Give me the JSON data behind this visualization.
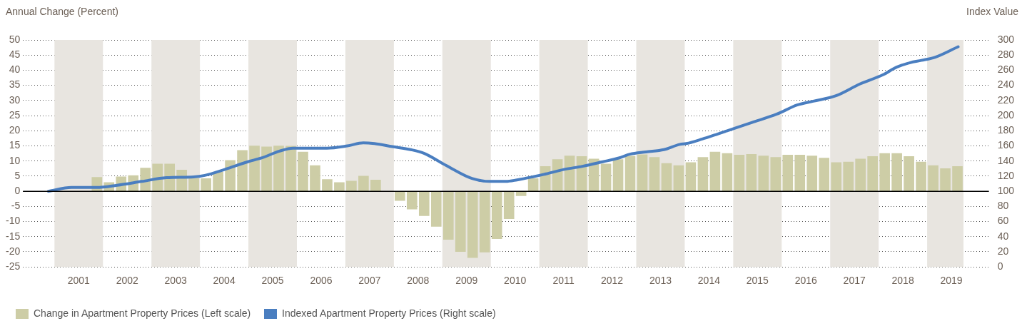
{
  "chart_data": {
    "type": "bar",
    "ylabel": "Annual Change (Percent)",
    "y2label": "Index Value",
    "xlim": [
      2000.875,
      2019.75
    ],
    "xticks": [
      {
        "value": 2001.5,
        "label": "2001"
      },
      {
        "value": 2002.5,
        "label": "2002"
      },
      {
        "value": 2003.5,
        "label": "2003"
      },
      {
        "value": 2004.5,
        "label": "2004"
      },
      {
        "value": 2005.5,
        "label": "2005"
      },
      {
        "value": 2006.5,
        "label": "2006"
      },
      {
        "value": 2007.5,
        "label": "2007"
      },
      {
        "value": 2008.5,
        "label": "2008"
      },
      {
        "value": 2009.5,
        "label": "2009"
      },
      {
        "value": 2010.5,
        "label": "2010"
      },
      {
        "value": 2011.5,
        "label": "2011"
      },
      {
        "value": 2012.5,
        "label": "2012"
      },
      {
        "value": 2013.5,
        "label": "2013"
      },
      {
        "value": 2014.5,
        "label": "2014"
      },
      {
        "value": 2015.5,
        "label": "2015"
      },
      {
        "value": 2016.5,
        "label": "2016"
      },
      {
        "value": 2017.5,
        "label": "2017"
      },
      {
        "value": 2018.5,
        "label": "2018"
      },
      {
        "value": 2019.5,
        "label": "2019"
      }
    ],
    "ylim": [
      -25,
      50
    ],
    "yticks": [
      -25,
      -20,
      -15,
      -10,
      -5,
      0,
      5,
      10,
      15,
      20,
      25,
      30,
      35,
      40,
      45,
      50
    ],
    "y2lim": [
      0,
      300
    ],
    "y2ticks": [
      0,
      20,
      40,
      60,
      80,
      100,
      120,
      140,
      160,
      180,
      200,
      220,
      240,
      260,
      280,
      300
    ],
    "grid": "y",
    "legend": "bottom left",
    "marker": "none",
    "bands": [
      {
        "axis": "x",
        "from": 2001,
        "to": 2002,
        "color": "#e8e5e0"
      },
      {
        "axis": "x",
        "from": 2003,
        "to": 2004,
        "color": "#e8e5e0"
      },
      {
        "axis": "x",
        "from": 2005,
        "to": 2006,
        "color": "#e8e5e0"
      },
      {
        "axis": "x",
        "from": 2007,
        "to": 2008,
        "color": "#e8e5e0"
      },
      {
        "axis": "x",
        "from": 2009,
        "to": 2010,
        "color": "#e8e5e0"
      },
      {
        "axis": "x",
        "from": 2011,
        "to": 2012,
        "color": "#e8e5e0"
      },
      {
        "axis": "x",
        "from": 2013,
        "to": 2014,
        "color": "#e8e5e0"
      },
      {
        "axis": "x",
        "from": 2015,
        "to": 2016,
        "color": "#e8e5e0"
      },
      {
        "axis": "x",
        "from": 2017,
        "to": 2018,
        "color": "#e8e5e0"
      },
      {
        "axis": "x",
        "from": 2019,
        "to": 2019.75,
        "color": "#e8e5e0"
      }
    ],
    "ref_lines": [
      {
        "axis": "y",
        "value": 0,
        "color": "#000000"
      }
    ],
    "series": [
      {
        "name": "Change in Apartment Property Prices (Left scale)",
        "color": "#cdcda6",
        "x": [
          2001.875,
          2002.125,
          2002.375,
          2002.625,
          2002.875,
          2003.125,
          2003.375,
          2003.625,
          2003.875,
          2004.125,
          2004.375,
          2004.625,
          2004.875,
          2005.125,
          2005.375,
          2005.625,
          2005.875,
          2006.125,
          2006.375,
          2006.625,
          2006.875,
          2007.125,
          2007.375,
          2007.625,
          2008.125,
          2008.375,
          2008.625,
          2008.875,
          2009.125,
          2009.375,
          2009.625,
          2009.875,
          2010.125,
          2010.375,
          2010.625,
          2010.875,
          2011.125,
          2011.375,
          2011.625,
          2011.875,
          2012.125,
          2012.375,
          2012.625,
          2012.875,
          2013.125,
          2013.375,
          2013.625,
          2013.875,
          2014.125,
          2014.375,
          2014.625,
          2014.875,
          2015.125,
          2015.375,
          2015.625,
          2015.875,
          2016.125,
          2016.375,
          2016.625,
          2016.875,
          2017.125,
          2017.375,
          2017.625,
          2017.875,
          2018.125,
          2018.375,
          2018.625,
          2018.875,
          2019.125,
          2019.375,
          2019.625
        ],
        "values": [
          4.6,
          2.9,
          4.8,
          5.2,
          7.7,
          9.0,
          9.0,
          7.0,
          4.2,
          4.2,
          6.3,
          10.2,
          13.5,
          15.0,
          14.7,
          15.0,
          14.9,
          13.0,
          8.5,
          3.9,
          2.9,
          3.4,
          5.0,
          3.7,
          -3.1,
          -5.9,
          -8.1,
          -11.6,
          -15.9,
          -19.9,
          -21.9,
          -20.1,
          -15.7,
          -9.1,
          -1.5,
          4.2,
          8.2,
          10.5,
          11.7,
          11.5,
          10.7,
          9.0,
          10.5,
          11.6,
          12.1,
          11.2,
          9.2,
          8.5,
          9.5,
          11.2,
          13.0,
          12.5,
          12.0,
          12.2,
          11.7,
          11.2,
          12.0,
          12.0,
          11.7,
          11.0,
          9.5,
          9.7,
          10.7,
          11.5,
          12.5,
          12.5,
          11.5,
          9.7,
          8.5,
          7.5,
          8.2
        ]
      },
      {
        "name": "Indexed Apartment Property Prices (Right scale)",
        "type": "line",
        "axis": "y2",
        "color": "#4a7ec0",
        "x": [
          2000.875,
          2001.35,
          2001.87,
          2002.29,
          2002.8,
          2003.31,
          2003.87,
          2004.1,
          2004.52,
          2004.99,
          2005.27,
          2005.64,
          2005.92,
          2006.62,
          2007.04,
          2007.37,
          2007.6,
          2007.97,
          2008.35,
          2008.63,
          2009.0,
          2009.28,
          2009.61,
          2009.98,
          2010.31,
          2010.54,
          2010.86,
          2011.14,
          2011.52,
          2011.89,
          2012.31,
          2012.64,
          2012.87,
          2013.2,
          2013.57,
          2013.9,
          2014.03,
          2014.36,
          2014.69,
          2015.06,
          2015.39,
          2015.9,
          2016.32,
          2016.65,
          2017.11,
          2017.62,
          2018.09,
          2018.37,
          2018.65,
          2018.88,
          2019.16,
          2019.64
        ],
        "values": [
          100,
          105,
          105,
          108,
          113,
          118,
          119,
          121,
          129,
          139,
          144,
          153,
          157,
          157,
          160,
          164,
          163,
          159,
          155,
          150,
          137,
          127,
          117,
          113,
          113,
          115,
          119,
          123,
          129,
          133,
          139,
          144,
          149,
          152,
          155,
          162,
          163,
          169,
          176,
          184,
          191,
          202,
          214,
          219,
          226,
          242,
          254,
          264,
          270,
          273,
          277,
          291
        ]
      }
    ]
  }
}
